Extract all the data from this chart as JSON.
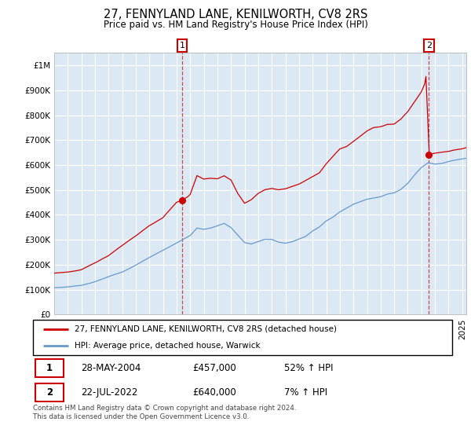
{
  "title": "27, FENNYLAND LANE, KENILWORTH, CV8 2RS",
  "subtitle": "Price paid vs. HM Land Registry's House Price Index (HPI)",
  "ytick_values": [
    0,
    100000,
    200000,
    300000,
    400000,
    500000,
    600000,
    700000,
    800000,
    900000,
    1000000
  ],
  "ylim": [
    0,
    1050000
  ],
  "xlim_start": 1995.0,
  "xlim_end": 2025.3,
  "red_line_color": "#cc0000",
  "blue_line_color": "#6699cc",
  "plot_bg_color": "#dce9f5",
  "marker1_date": 2004.41,
  "marker1_value": 457000,
  "marker2_date": 2022.55,
  "marker2_value": 640000,
  "legend_label_red": "27, FENNYLAND LANE, KENILWORTH, CV8 2RS (detached house)",
  "legend_label_blue": "HPI: Average price, detached house, Warwick",
  "table_row1": [
    "1",
    "28-MAY-2004",
    "£457,000",
    "52% ↑ HPI"
  ],
  "table_row2": [
    "2",
    "22-JUL-2022",
    "£640,000",
    "7% ↑ HPI"
  ],
  "footnote": "Contains HM Land Registry data © Crown copyright and database right 2024.\nThis data is licensed under the Open Government Licence v3.0.",
  "background_color": "#ffffff",
  "grid_color": "#ffffff"
}
